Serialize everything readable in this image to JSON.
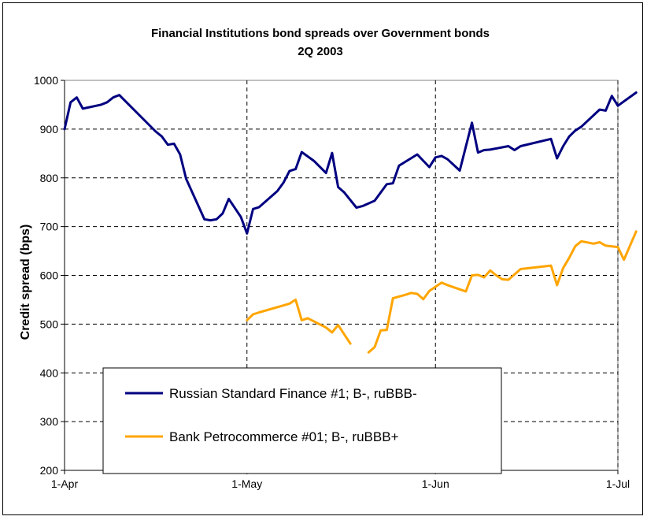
{
  "chart_data": {
    "type": "line",
    "title": [
      "Financial Institutions bond spreads  over Government bonds",
      "2Q 2003"
    ],
    "xlabel": "",
    "ylabel": "Credit spread (bps)",
    "ylim": [
      200,
      1000
    ],
    "yticks": [
      200,
      300,
      400,
      500,
      600,
      700,
      800,
      900,
      1000
    ],
    "xlim": [
      "2003-04-01",
      "2003-07-01"
    ],
    "xticks": [
      {
        "date": "2003-04-01",
        "label": "1-Apr"
      },
      {
        "date": "2003-05-01",
        "label": "1-May"
      },
      {
        "date": "2003-06-01",
        "label": "1-Jun"
      },
      {
        "date": "2003-07-01",
        "label": "1-Jul"
      }
    ],
    "grid": true,
    "legend": "bottom-left",
    "series": [
      {
        "name": "Russian Standard Finance #1; B-, ruBBB-",
        "color": "#000080",
        "points": [
          [
            "2003-04-01",
            900
          ],
          [
            "2003-04-02",
            955
          ],
          [
            "2003-04-03",
            965
          ],
          [
            "2003-04-04",
            942
          ],
          [
            "2003-04-07",
            950
          ],
          [
            "2003-04-08",
            955
          ],
          [
            "2003-04-09",
            965
          ],
          [
            "2003-04-10",
            970
          ],
          [
            "2003-04-14",
            920
          ],
          [
            "2003-04-16",
            895
          ],
          [
            "2003-04-17",
            885
          ],
          [
            "2003-04-18",
            868
          ],
          [
            "2003-04-19",
            870
          ],
          [
            "2003-04-20",
            848
          ],
          [
            "2003-04-21",
            798
          ],
          [
            "2003-04-24",
            715
          ],
          [
            "2003-04-25",
            713
          ],
          [
            "2003-04-26",
            715
          ],
          [
            "2003-04-27",
            727
          ],
          [
            "2003-04-28",
            757
          ],
          [
            "2003-04-30",
            720
          ],
          [
            "2003-05-01",
            686
          ],
          [
            "2003-05-02",
            736
          ],
          [
            "2003-05-03",
            740
          ],
          [
            "2003-05-06",
            773
          ],
          [
            "2003-05-07",
            790
          ],
          [
            "2003-05-08",
            814
          ],
          [
            "2003-05-09",
            818
          ],
          [
            "2003-05-10",
            853
          ],
          [
            "2003-05-12",
            835
          ],
          [
            "2003-05-14",
            810
          ],
          [
            "2003-05-15",
            851
          ],
          [
            "2003-05-16",
            781
          ],
          [
            "2003-05-17",
            770
          ],
          [
            "2003-05-19",
            739
          ],
          [
            "2003-05-20",
            742
          ],
          [
            "2003-05-22",
            753
          ],
          [
            "2003-05-24",
            787
          ],
          [
            "2003-05-25",
            789
          ],
          [
            "2003-05-26",
            825
          ],
          [
            "2003-05-29",
            848
          ],
          [
            "2003-05-31",
            822
          ],
          [
            "2003-06-01",
            842
          ],
          [
            "2003-06-02",
            845
          ],
          [
            "2003-06-03",
            838
          ],
          [
            "2003-06-05",
            815
          ],
          [
            "2003-06-07",
            913
          ],
          [
            "2003-06-08",
            852
          ],
          [
            "2003-06-09",
            857
          ],
          [
            "2003-06-10",
            858
          ],
          [
            "2003-06-13",
            865
          ],
          [
            "2003-06-14",
            857
          ],
          [
            "2003-06-15",
            865
          ],
          [
            "2003-06-20",
            880
          ],
          [
            "2003-06-21",
            840
          ],
          [
            "2003-06-22",
            865
          ],
          [
            "2003-06-23",
            885
          ],
          [
            "2003-06-24",
            897
          ],
          [
            "2003-06-25",
            905
          ],
          [
            "2003-06-28",
            940
          ],
          [
            "2003-06-29",
            938
          ],
          [
            "2003-06-30",
            968
          ],
          [
            "2003-07-01",
            948
          ],
          [
            "2003-07-04",
            975
          ]
        ]
      },
      {
        "name": "Bank Petrocommerce #01; B-, ruBBB+",
        "color": "#FFA500",
        "segments": [
          [
            [
              "2003-05-01",
              508
            ],
            [
              "2003-05-02",
              520
            ],
            [
              "2003-05-03",
              524
            ],
            [
              "2003-05-08",
              542
            ],
            [
              "2003-05-09",
              550
            ],
            [
              "2003-05-10",
              508
            ],
            [
              "2003-05-11",
              512
            ],
            [
              "2003-05-14",
              493
            ],
            [
              "2003-05-15",
              483
            ],
            [
              "2003-05-16",
              498
            ],
            [
              "2003-05-17",
              479
            ],
            [
              "2003-05-18",
              460
            ]
          ],
          [
            [
              "2003-05-21",
              442
            ],
            [
              "2003-05-22",
              453
            ],
            [
              "2003-05-23",
              487
            ],
            [
              "2003-05-24",
              488
            ],
            [
              "2003-05-25",
              553
            ],
            [
              "2003-05-27",
              560
            ],
            [
              "2003-05-28",
              564
            ],
            [
              "2003-05-29",
              562
            ],
            [
              "2003-05-30",
              551
            ],
            [
              "2003-05-31",
              568
            ],
            [
              "2003-06-02",
              585
            ],
            [
              "2003-06-03",
              580
            ],
            [
              "2003-06-06",
              567
            ],
            [
              "2003-06-07",
              600
            ],
            [
              "2003-06-08",
              601
            ],
            [
              "2003-06-09",
              596
            ],
            [
              "2003-06-10",
              610
            ],
            [
              "2003-06-11",
              600
            ],
            [
              "2003-06-12",
              592
            ],
            [
              "2003-06-13",
              591
            ],
            [
              "2003-06-15",
              613
            ],
            [
              "2003-06-20",
              620
            ],
            [
              "2003-06-21",
              580
            ],
            [
              "2003-06-22",
              615
            ],
            [
              "2003-06-23",
              636
            ],
            [
              "2003-06-24",
              660
            ],
            [
              "2003-06-25",
              670
            ],
            [
              "2003-06-27",
              665
            ],
            [
              "2003-06-28",
              668
            ],
            [
              "2003-06-29",
              661
            ],
            [
              "2003-07-01",
              658
            ],
            [
              "2003-07-02",
              632
            ],
            [
              "2003-07-04",
              690
            ]
          ]
        ]
      }
    ]
  }
}
